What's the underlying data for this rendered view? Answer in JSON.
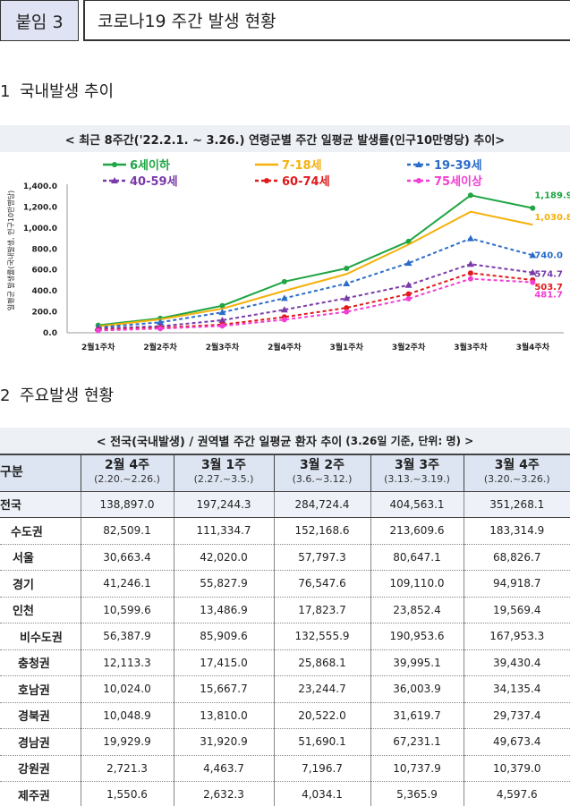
{
  "header": {
    "label": "붙임 3",
    "title": "코로나19 주간 발생 현황"
  },
  "section1": {
    "num": "1",
    "title": "국내발생 추이"
  },
  "section2": {
    "num": "2",
    "title": "주요발생 현황"
  },
  "chart_data": {
    "type": "line",
    "title": "< 최근 8주간('22.2.1. ~ 3.26.) 연령군별 주간 일평균 발생률(인구10만명당) 추이>",
    "ylabel": "일평균 발생률(국내발생, 인구10만명당)",
    "ylim": [
      0,
      1400
    ],
    "yticks": [
      "0.0",
      "200.0",
      "400.0",
      "600.0",
      "800.0",
      "1,000.0",
      "1,200.0",
      "1,400.0"
    ],
    "ytick_values": [
      0,
      200,
      400,
      600,
      800,
      1000,
      1200,
      1400
    ],
    "categories": [
      "2월1주차",
      "2월2주차",
      "2월3주차",
      "2월4주차",
      "3월1주차",
      "3월2주차",
      "3월3주차",
      "3월4주차"
    ],
    "series": [
      {
        "name": "6세이하",
        "color": "#1fa544",
        "dash": "",
        "marker": "circle",
        "values": [
          72,
          138,
          258,
          488,
          615,
          872,
          1312,
          1189.9
        ],
        "end_label": "1,189.9"
      },
      {
        "name": "7-18세",
        "color": "#f5b10a",
        "dash": "",
        "marker": "none",
        "values": [
          62,
          128,
          230,
          400,
          560,
          842,
          1155,
          1030.8
        ],
        "end_label": "1,030.8"
      },
      {
        "name": "19-39세",
        "color": "#2b6cc8",
        "dash": "4,3",
        "marker": "triangle",
        "values": [
          52,
          100,
          195,
          330,
          470,
          665,
          900,
          740.0
        ],
        "end_label": "740.0"
      },
      {
        "name": "40-59세",
        "color": "#7a3aa8",
        "dash": "4,3",
        "marker": "triangle",
        "values": [
          42,
          62,
          120,
          220,
          330,
          455,
          655,
          574.7
        ],
        "end_label": "574.7"
      },
      {
        "name": "60-74세",
        "color": "#e0191b",
        "dash": "4,3",
        "marker": "circle",
        "values": [
          28,
          48,
          78,
          150,
          238,
          370,
          570,
          503.7
        ],
        "end_label": "503.7"
      },
      {
        "name": "75세이상",
        "color": "#f23fd3",
        "dash": "4,3",
        "marker": "circle",
        "values": [
          22,
          40,
          65,
          125,
          200,
          325,
          515,
          481.7
        ],
        "end_label": "481.7"
      }
    ]
  },
  "table": {
    "title": "< 전국(국내발생) / 권역별 주간 일평균 환자 추이",
    "title_sm": "(3.26일 기준, 단위: 명) >",
    "corner": "구분",
    "columns": [
      {
        "label": "2월 4주",
        "range": "(2.20.~2.26.)"
      },
      {
        "label": "3월 1주",
        "range": "(2.27.~3.5.)"
      },
      {
        "label": "3월 2주",
        "range": "(3.6.~3.12.)"
      },
      {
        "label": "3월 3주",
        "range": "(3.13.~3.19.)"
      },
      {
        "label": "3월 4주",
        "range": "(3.20.~3.26.)"
      }
    ],
    "rows": [
      {
        "name": "전국",
        "values": [
          "138,897.0",
          "197,244.3",
          "284,724.4",
          "404,563.1",
          "351,268.1"
        ]
      },
      {
        "name": "수도권",
        "values": [
          "82,509.1",
          "111,334.7",
          "152,168.6",
          "213,609.6",
          "183,314.9"
        ]
      },
      {
        "name": "서울",
        "values": [
          "30,663.4",
          "42,020.0",
          "57,797.3",
          "80,647.1",
          "68,826.7"
        ]
      },
      {
        "name": "경기",
        "values": [
          "41,246.1",
          "55,827.9",
          "76,547.6",
          "109,110.0",
          "94,918.7"
        ]
      },
      {
        "name": "인천",
        "values": [
          "10,599.6",
          "13,486.9",
          "17,823.7",
          "23,852.4",
          "19,569.4"
        ]
      },
      {
        "name": "비수도권",
        "values": [
          "56,387.9",
          "85,909.6",
          "132,555.9",
          "190,953.6",
          "167,953.3"
        ]
      },
      {
        "name": "충청권",
        "values": [
          "12,113.3",
          "17,415.0",
          "25,868.1",
          "39,995.1",
          "39,430.4"
        ]
      },
      {
        "name": "호남권",
        "values": [
          "10,024.0",
          "15,667.7",
          "23,244.7",
          "36,003.9",
          "34,135.4"
        ]
      },
      {
        "name": "경북권",
        "values": [
          "10,048.9",
          "13,810.0",
          "20,522.0",
          "31,619.7",
          "29,737.4"
        ]
      },
      {
        "name": "경남권",
        "values": [
          "19,929.9",
          "31,920.9",
          "51,690.1",
          "67,231.1",
          "49,673.4"
        ]
      },
      {
        "name": "강원권",
        "values": [
          "2,721.3",
          "4,463.7",
          "7,196.7",
          "10,737.9",
          "10,379.0"
        ]
      },
      {
        "name": "제주권",
        "values": [
          "1,550.6",
          "2,632.3",
          "4,034.1",
          "5,365.9",
          "4,597.6"
        ]
      }
    ]
  }
}
